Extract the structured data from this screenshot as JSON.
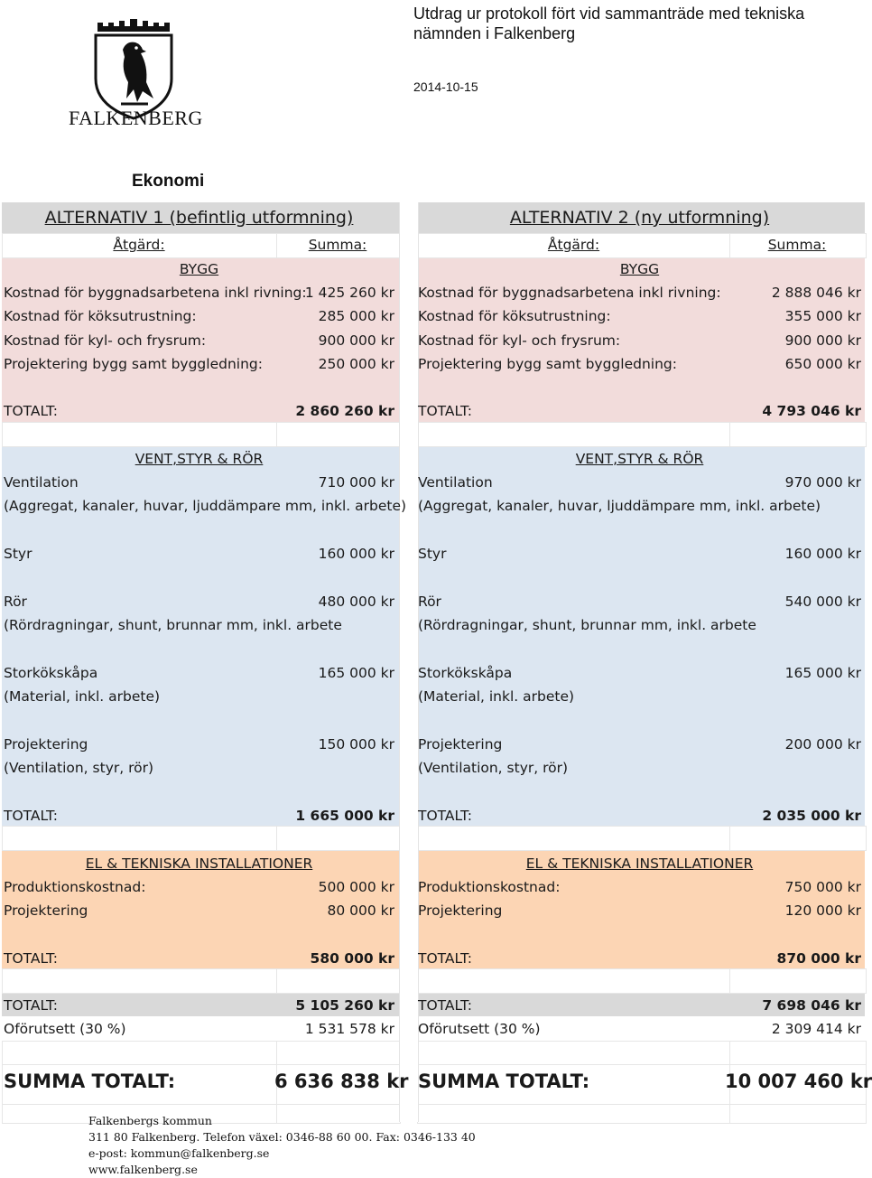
{
  "header": {
    "title": "Utdrag ur protokoll fört vid sammanträde med tekniska nämnden i Falkenberg",
    "date": "2014-10-15",
    "logo_text": "FALKENBERG",
    "section": "Ekonomi"
  },
  "alt1": {
    "title": "ALTERNATIV 1 (befintlig utformning)",
    "col_action": "Åtgärd:",
    "col_sum": "Summa:",
    "bygg": {
      "heading": "BYGG",
      "rows": [
        {
          "label": "Kostnad för byggnadsarbetena inkl rivning:",
          "value": "1 425 260 kr"
        },
        {
          "label": "Kostnad för köksutrustning:",
          "value": "285 000 kr"
        },
        {
          "label": "Kostnad för kyl- och frysrum:",
          "value": "900 000 kr"
        },
        {
          "label": "Projektering bygg samt byggledning:",
          "value": "250 000 kr"
        }
      ],
      "total_label": "TOTALT:",
      "total_value": "2 860 260 kr"
    },
    "vent": {
      "heading": "VENT,STYR & RÖR",
      "ventilation": "Ventilation",
      "ventilation_value": "710 000 kr",
      "ventilation_note": "(Aggregat, kanaler, huvar, ljuddämpare mm, inkl. arbete)",
      "styr": "Styr",
      "styr_value": "160 000 kr",
      "ror": "Rör",
      "ror_value": "480 000 kr",
      "ror_note": "(Rördragningar, shunt, brunnar mm, inkl. arbete",
      "stork": "Storkökskåpa",
      "stork_value": "165 000 kr",
      "stork_note": "(Material, inkl. arbete)",
      "proj": "Projektering",
      "proj_value": "150 000 kr",
      "proj_note": "(Ventilation, styr, rör)",
      "total_label": "TOTALT:",
      "total_value": "1 665 000 kr"
    },
    "el": {
      "heading": "EL & TEKNISKA INSTALLATIONER",
      "prod": "Produktionskostnad:",
      "prod_value": "500 000 kr",
      "proj": "Projektering",
      "proj_value": "80 000 kr",
      "total_label": "TOTALT:",
      "total_value": "580 000 kr"
    },
    "grand_label": "TOTALT:",
    "grand_value": "5 105 260 kr",
    "contingency_label": "Oförutsett (30 %)",
    "contingency_value": "1 531 578 kr",
    "sum_label": "SUMMA TOTALT:",
    "sum_value": "6 636 838 kr"
  },
  "alt2": {
    "title": "ALTERNATIV 2 (ny utformning)",
    "col_action": "Åtgärd:",
    "col_sum": "Summa:",
    "bygg": {
      "heading": "BYGG",
      "rows": [
        {
          "label": "Kostnad för byggnadsarbetena inkl rivning:",
          "value": "2 888 046 kr"
        },
        {
          "label": "Kostnad för köksutrustning:",
          "value": "355 000 kr"
        },
        {
          "label": "Kostnad för kyl- och frysrum:",
          "value": "900 000 kr"
        },
        {
          "label": "Projektering bygg samt byggledning:",
          "value": "650 000 kr"
        }
      ],
      "total_label": "TOTALT:",
      "total_value": "4 793 046 kr"
    },
    "vent": {
      "heading": "VENT,STYR & RÖR",
      "ventilation": "Ventilation",
      "ventilation_value": "970 000 kr",
      "ventilation_note": "(Aggregat, kanaler, huvar, ljuddämpare mm, inkl. arbete)",
      "styr": "Styr",
      "styr_value": "160 000 kr",
      "ror": "Rör",
      "ror_value": "540 000 kr",
      "ror_note": "(Rördragningar, shunt, brunnar mm, inkl. arbete",
      "stork": "Storkökskåpa",
      "stork_value": "165 000 kr",
      "stork_note": "(Material, inkl. arbete)",
      "proj": "Projektering",
      "proj_value": "200 000 kr",
      "proj_note": "(Ventilation, styr, rör)",
      "total_label": "TOTALT:",
      "total_value": "2 035 000 kr"
    },
    "el": {
      "heading": "EL & TEKNISKA INSTALLATIONER",
      "prod": "Produktionskostnad:",
      "prod_value": "750 000 kr",
      "proj": "Projektering",
      "proj_value": "120 000 kr",
      "total_label": "TOTALT:",
      "total_value": "870 000 kr"
    },
    "grand_label": "TOTALT:",
    "grand_value": "7 698 046 kr",
    "contingency_label": "Oförutsett (30 %)",
    "contingency_value": "2 309 414 kr",
    "sum_label": "SUMMA TOTALT:",
    "sum_value": "10 007 460 kr"
  },
  "footer": {
    "org": "Falkenbergs kommun",
    "address": "311 80  Falkenberg. Telefon växel: 0346-88 60 00. Fax: 0346-133 40",
    "email": "e-post: kommun@falkenberg.se",
    "web": "www.falkenberg.se"
  },
  "colors": {
    "title_band": "#d9d9d9",
    "bygg_band": "#f2dcdb",
    "vent_band": "#dce6f1",
    "el_band": "#fcd5b4",
    "total_band": "#d9d9d9"
  }
}
